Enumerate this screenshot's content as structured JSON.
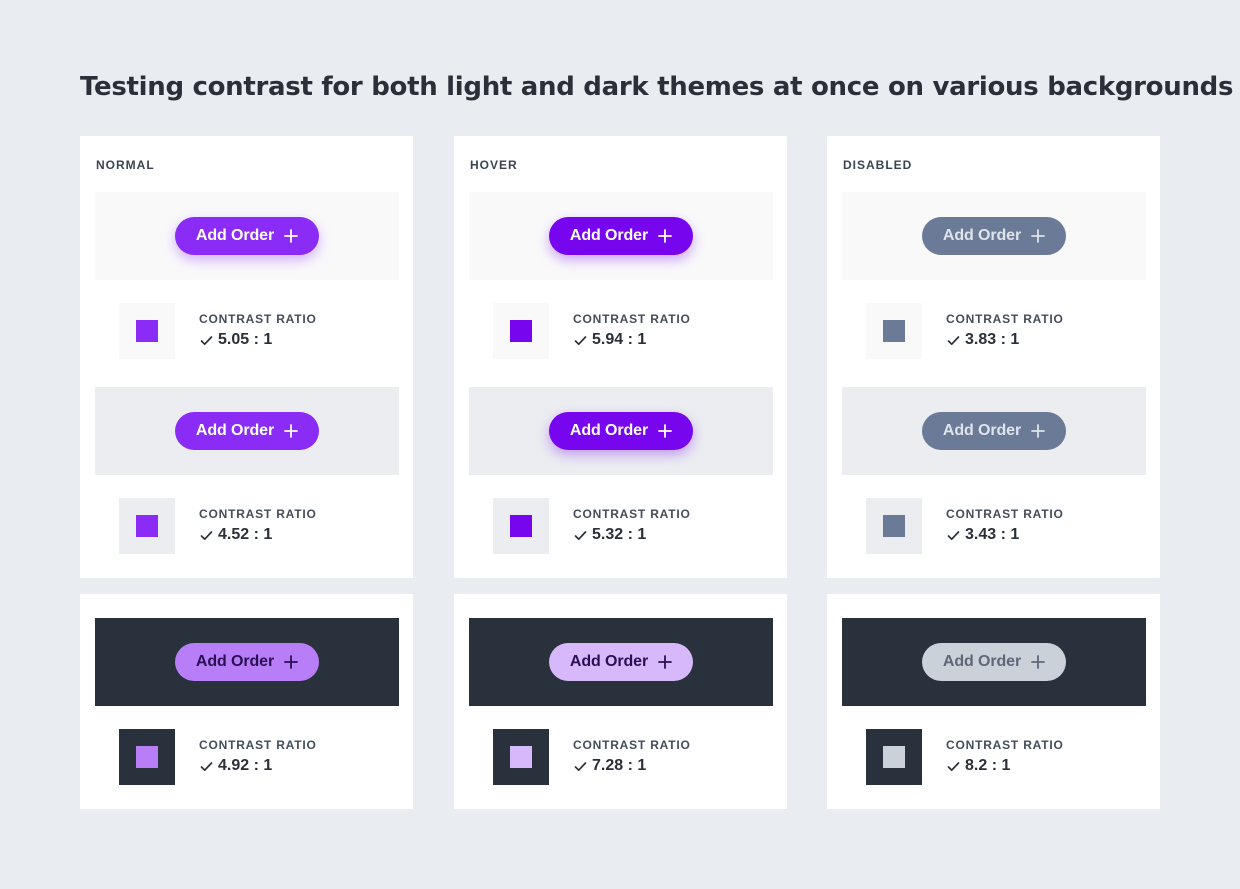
{
  "title": "Testing contrast for both light and dark themes at once on various backgrounds",
  "button": {
    "label": "Add Order",
    "icon": "plus-icon"
  },
  "contrast_label": "CONTRAST RATIO",
  "check_icon": "check-icon",
  "states": [
    {
      "name": "NORMAL",
      "light": [
        {
          "bg": "#f9f9fa",
          "button_bg": "#8a2cf5",
          "button_text": "#ffffff",
          "shadow": "0 5px 12px rgba(138,44,245,0.35)",
          "ratio": "5.05 : 1"
        },
        {
          "bg": "#ebedf1",
          "button_bg": "#8a2cf5",
          "button_text": "#ffffff",
          "shadow": "none",
          "ratio": "4.52 : 1"
        }
      ],
      "dark": {
        "bg": "#29313c",
        "button_bg": "#b77ef7",
        "button_text": "#2a0f55",
        "ratio": "4.92 : 1"
      }
    },
    {
      "name": "HOVER",
      "light": [
        {
          "bg": "#f9f9fa",
          "button_bg": "#7706ee",
          "button_text": "#ffffff",
          "shadow": "0 5px 12px rgba(119,6,238,0.35)",
          "ratio": "5.94 : 1"
        },
        {
          "bg": "#ebedf1",
          "button_bg": "#7706ee",
          "button_text": "#ffffff",
          "shadow": "0 5px 12px rgba(119,6,238,0.35)",
          "ratio": "5.32 : 1"
        }
      ],
      "dark": {
        "bg": "#29313c",
        "button_bg": "#d7b8fb",
        "button_text": "#2a0f55",
        "ratio": "7.28 : 1"
      }
    },
    {
      "name": "DISABLED",
      "light": [
        {
          "bg": "#f9f9fa",
          "button_bg": "#6b7a96",
          "button_text": "#dfe3ea",
          "shadow": "none",
          "ratio": "3.83 : 1"
        },
        {
          "bg": "#ebedf1",
          "button_bg": "#6b7a96",
          "button_text": "#dfe3ea",
          "shadow": "none",
          "ratio": "3.43 : 1"
        }
      ],
      "dark": {
        "bg": "#29313c",
        "button_bg": "#cbd1d9",
        "button_text": "#5e6878",
        "ratio": "8.2 : 1"
      }
    }
  ]
}
